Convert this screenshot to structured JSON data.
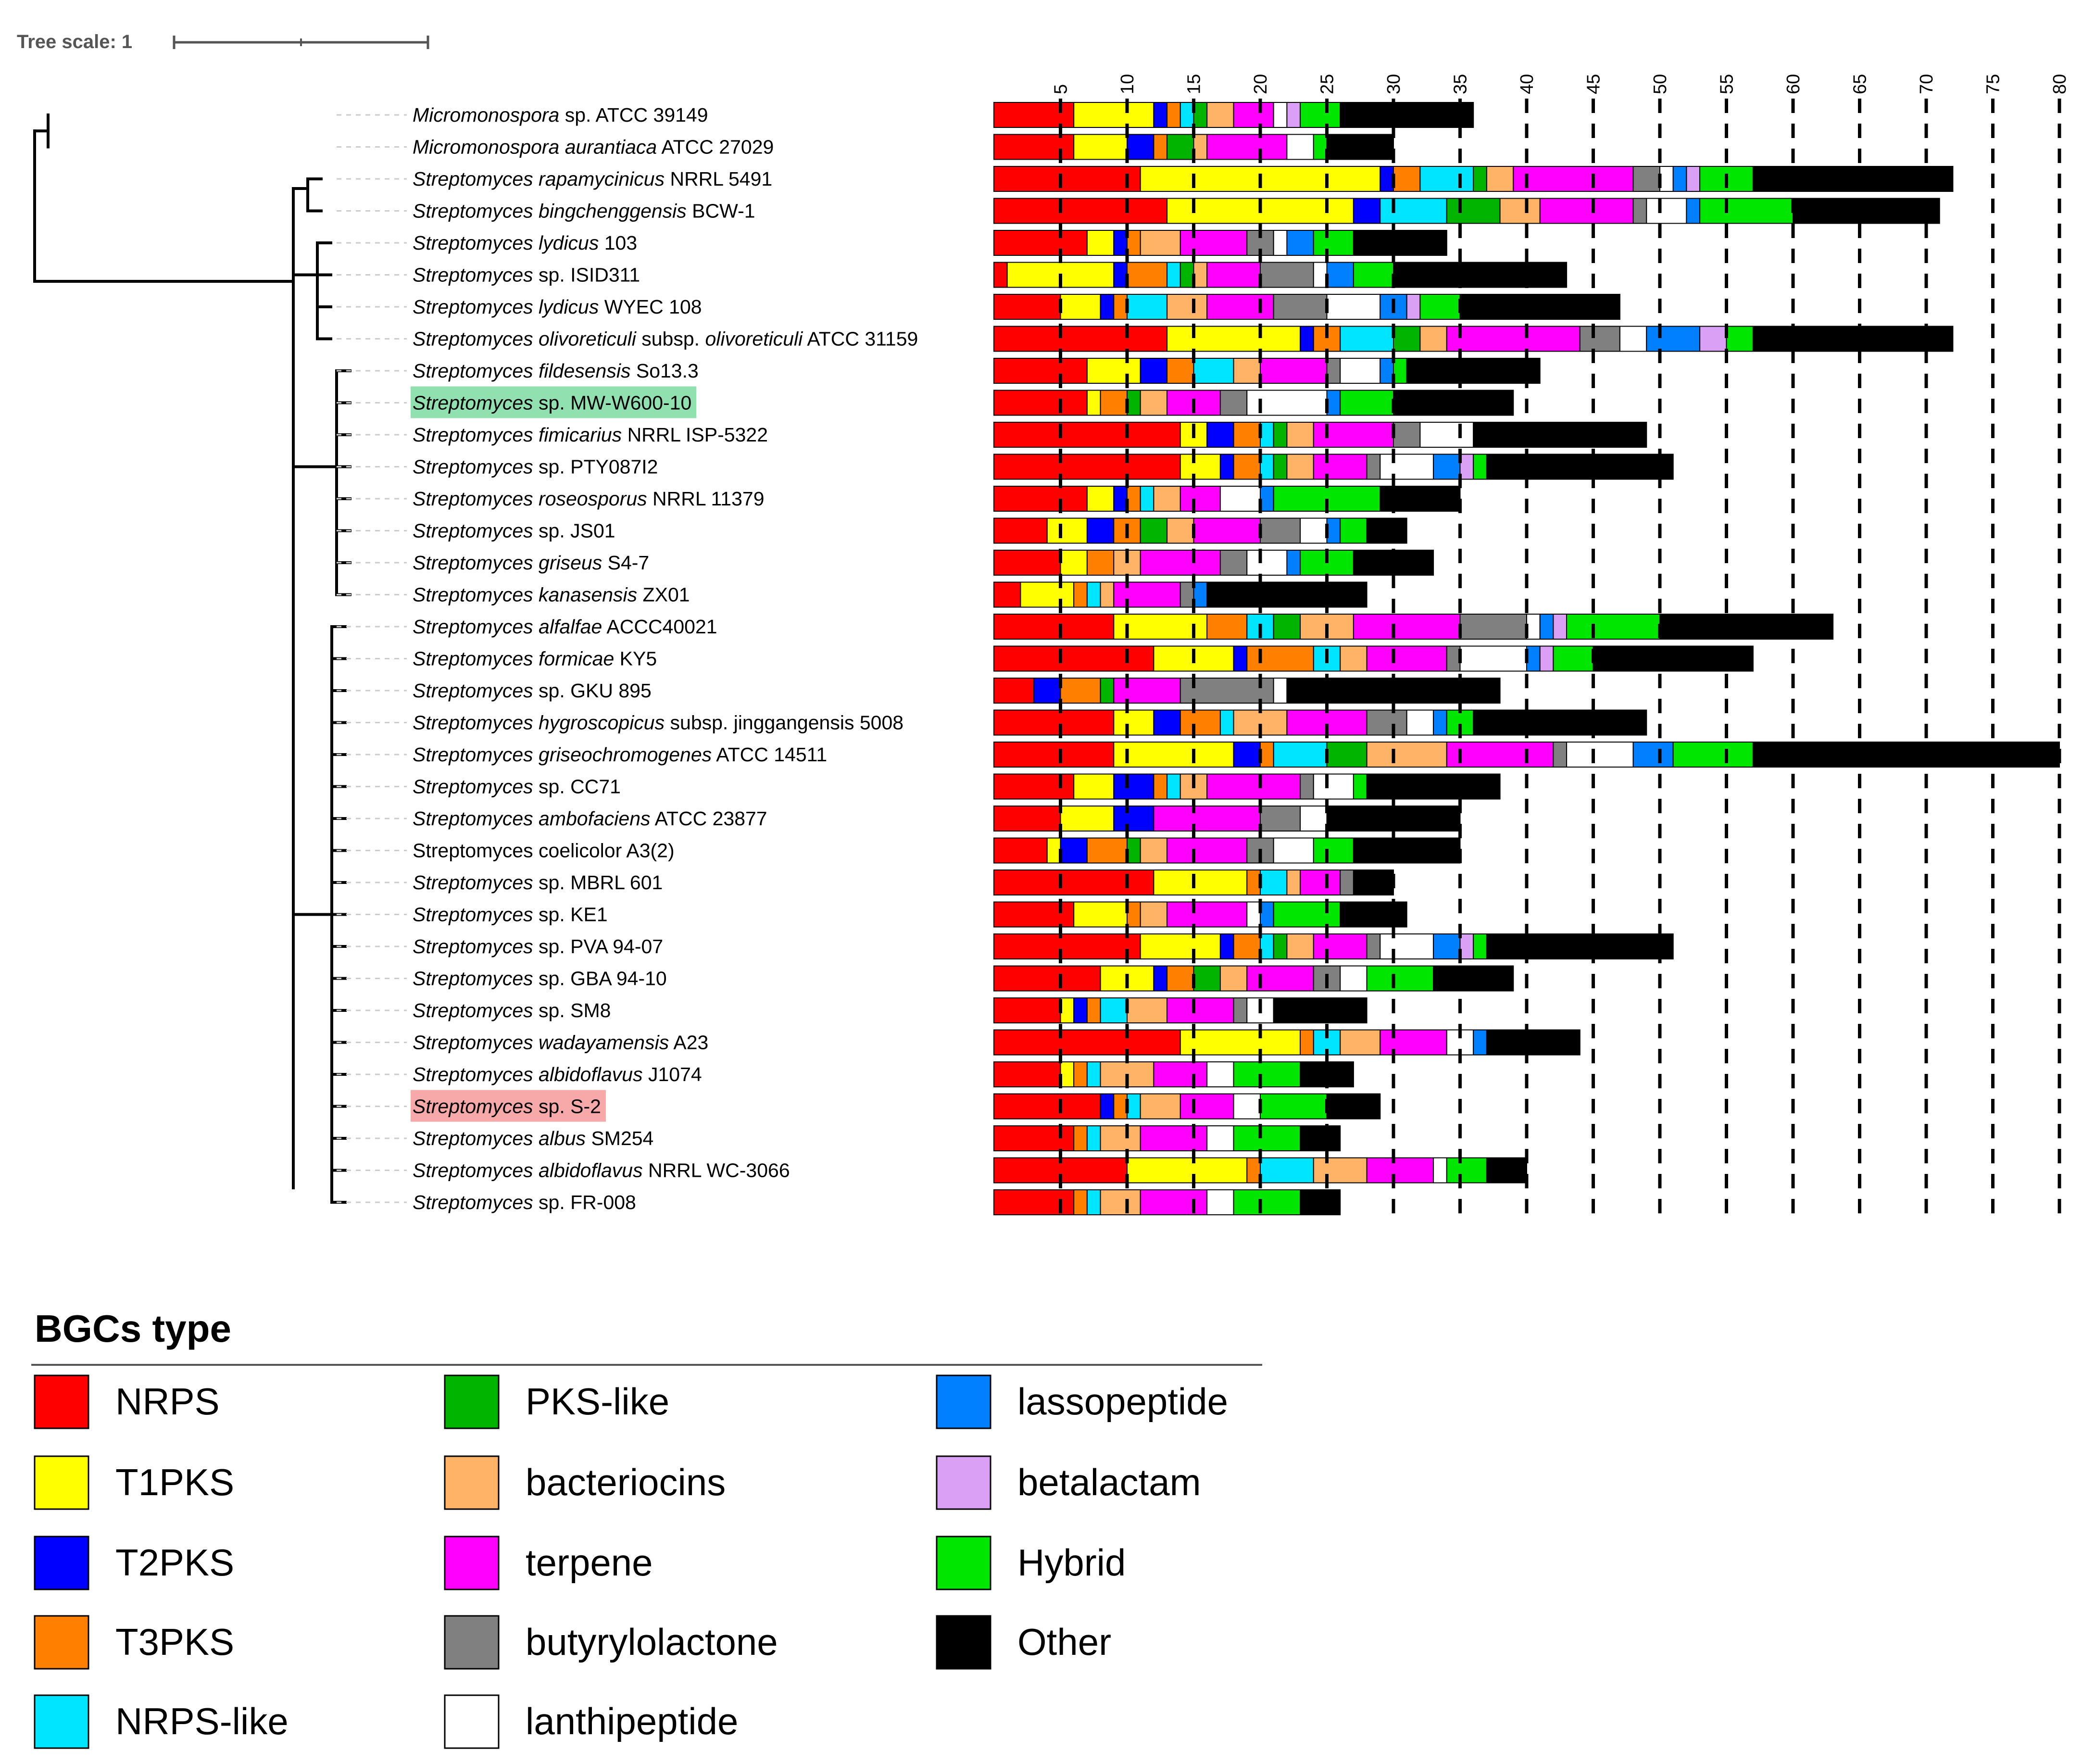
{
  "tree_scale": {
    "label": "Tree scale: 1"
  },
  "axis_ticks": [
    5,
    10,
    15,
    20,
    25,
    30,
    35,
    40,
    45,
    50,
    55,
    60,
    65,
    70,
    75,
    80
  ],
  "highlights": {
    "green": "#90E0B0",
    "red": "#F7A8A8"
  },
  "legend": {
    "title": "BGCs type",
    "items": [
      {
        "name": "NRPS",
        "color": "#FF0000"
      },
      {
        "name": "T1PKS",
        "color": "#FFFF00"
      },
      {
        "name": "T2PKS",
        "color": "#0000FF"
      },
      {
        "name": "T3PKS",
        "color": "#FF8000"
      },
      {
        "name": "NRPS-like",
        "color": "#00E5FF"
      },
      {
        "name": "PKS-like",
        "color": "#00B400"
      },
      {
        "name": "bacteriocins",
        "color": "#FFB366"
      },
      {
        "name": "terpene",
        "color": "#FF00FF"
      },
      {
        "name": "butyrylolactone",
        "color": "#808080"
      },
      {
        "name": "lanthipeptide",
        "color": "#FFFFFF"
      },
      {
        "name": "lassopeptide",
        "color": "#0080FF"
      },
      {
        "name": "betalactam",
        "color": "#D9A0F5"
      },
      {
        "name": "Hybrid",
        "color": "#00E600"
      },
      {
        "name": "Other",
        "color": "#000000"
      }
    ]
  },
  "chart_data": {
    "type": "bar",
    "orientation": "horizontal-stacked",
    "title": "",
    "xlabel": "",
    "ylabel": "",
    "xlim": [
      0,
      80
    ],
    "grid": "dashed vertical lines every 5",
    "series_order": [
      "NRPS",
      "T1PKS",
      "T2PKS",
      "T3PKS",
      "NRPS-like",
      "PKS-like",
      "bacteriocins",
      "terpene",
      "butyrylolactone",
      "lanthipeptide",
      "lassopeptide",
      "betalactam",
      "Hybrid",
      "Other"
    ],
    "rows": [
      {
        "label": [
          {
            "t": "Micromonospora",
            "i": true
          },
          {
            "t": " sp. ATCC 39149",
            "i": false
          }
        ],
        "segs": [
          6,
          6,
          1,
          1,
          1,
          1,
          2,
          3,
          0,
          1,
          0,
          1,
          3,
          10
        ]
      },
      {
        "label": [
          {
            "t": "Micromonospora aurantiaca",
            "i": true
          },
          {
            "t": " ATCC 27029",
            "i": false
          }
        ],
        "segs": [
          6,
          4,
          2,
          1,
          0,
          2,
          1,
          6,
          0,
          2,
          0,
          0,
          1,
          5
        ]
      },
      {
        "label": [
          {
            "t": "Streptomyces rapamycinicus",
            "i": true
          },
          {
            "t": " NRRL 5491",
            "i": false
          }
        ],
        "segs": [
          11,
          18,
          1,
          2,
          4,
          1,
          2,
          9,
          2,
          1,
          1,
          1,
          4,
          15
        ]
      },
      {
        "label": [
          {
            "t": "Streptomyces bingchenggensis",
            "i": true
          },
          {
            "t": " BCW-1",
            "i": false
          }
        ],
        "segs": [
          13,
          14,
          2,
          0,
          5,
          4,
          3,
          7,
          1,
          3,
          1,
          0,
          7,
          11
        ]
      },
      {
        "label": [
          {
            "t": "Streptomyces lydicus",
            "i": true
          },
          {
            "t": " 103",
            "i": false
          }
        ],
        "segs": [
          7,
          2,
          1,
          1,
          0,
          0,
          3,
          5,
          2,
          1,
          2,
          0,
          3,
          7
        ]
      },
      {
        "label": [
          {
            "t": "Streptomyces",
            "i": true
          },
          {
            "t": " sp. ISID311",
            "i": false
          }
        ],
        "segs": [
          1,
          8,
          1,
          3,
          1,
          1,
          1,
          4,
          4,
          1,
          2,
          0,
          3,
          13
        ]
      },
      {
        "label": [
          {
            "t": "Streptomyces lydicus",
            "i": true
          },
          {
            "t": " WYEC 108",
            "i": false
          }
        ],
        "segs": [
          5,
          3,
          1,
          1,
          3,
          0,
          3,
          5,
          4,
          4,
          2,
          1,
          3,
          12
        ]
      },
      {
        "label": [
          {
            "t": "Streptomyces olivoreticuli",
            "i": true
          },
          {
            "t": " subsp. ",
            "i": false
          },
          {
            "t": "olivoreticuli",
            "i": true
          },
          {
            "t": " ATCC 31159",
            "i": false
          }
        ],
        "segs": [
          13,
          10,
          1,
          2,
          4,
          2,
          2,
          10,
          3,
          2,
          4,
          2,
          2,
          15
        ]
      },
      {
        "label": [
          {
            "t": "Streptomyces fildesensis",
            "i": true
          },
          {
            "t": " So13.3",
            "i": false
          }
        ],
        "segs": [
          7,
          4,
          2,
          2,
          3,
          0,
          2,
          5,
          1,
          3,
          1,
          0,
          1,
          10
        ]
      },
      {
        "label": [
          {
            "t": "Streptomyces",
            "i": true
          },
          {
            "t": " sp. MW-W600-10",
            "i": false
          }
        ],
        "hl": "green",
        "segs": [
          7,
          1,
          0,
          2,
          0,
          1,
          2,
          4,
          2,
          6,
          1,
          0,
          4,
          9
        ]
      },
      {
        "label": [
          {
            "t": "Streptomyces fimicarius",
            "i": true
          },
          {
            "t": " NRRL ISP-5322",
            "i": false
          }
        ],
        "segs": [
          14,
          2,
          2,
          2,
          1,
          1,
          2,
          6,
          2,
          4,
          0,
          0,
          0,
          13
        ]
      },
      {
        "label": [
          {
            "t": "Streptomyces",
            "i": true
          },
          {
            "t": " sp. PTY087I2",
            "i": false
          }
        ],
        "segs": [
          14,
          3,
          1,
          2,
          1,
          1,
          2,
          4,
          1,
          4,
          2,
          1,
          1,
          14
        ]
      },
      {
        "label": [
          {
            "t": "Streptomyces roseosporus",
            "i": true
          },
          {
            "t": " NRRL 11379",
            "i": false
          }
        ],
        "segs": [
          7,
          2,
          1,
          1,
          1,
          0,
          2,
          3,
          0,
          3,
          1,
          0,
          8,
          6
        ]
      },
      {
        "label": [
          {
            "t": "Streptomyces",
            "i": true
          },
          {
            "t": " sp. JS01",
            "i": false
          }
        ],
        "segs": [
          4,
          3,
          2,
          2,
          0,
          2,
          2,
          5,
          3,
          2,
          1,
          0,
          2,
          3
        ]
      },
      {
        "label": [
          {
            "t": "Streptomyces griseus",
            "i": true
          },
          {
            "t": " S4-7",
            "i": false
          }
        ],
        "segs": [
          5,
          2,
          0,
          2,
          0,
          0,
          2,
          6,
          2,
          3,
          1,
          0,
          4,
          6
        ]
      },
      {
        "label": [
          {
            "t": "Streptomyces kanasensis",
            "i": true
          },
          {
            "t": " ZX01",
            "i": false
          }
        ],
        "segs": [
          2,
          4,
          0,
          1,
          1,
          0,
          1,
          5,
          1,
          0,
          1,
          0,
          0,
          12
        ]
      },
      {
        "label": [
          {
            "t": "Streptomyces alfalfae",
            "i": true
          },
          {
            "t": " ACCC40021",
            "i": false
          }
        ],
        "segs": [
          9,
          7,
          0,
          3,
          2,
          2,
          4,
          8,
          5,
          1,
          1,
          1,
          7,
          13
        ]
      },
      {
        "label": [
          {
            "t": "Streptomyces formicae",
            "i": true
          },
          {
            "t": " KY5",
            "i": false
          }
        ],
        "segs": [
          12,
          6,
          1,
          5,
          2,
          0,
          2,
          6,
          1,
          5,
          1,
          1,
          3,
          12
        ]
      },
      {
        "label": [
          {
            "t": "Streptomyces",
            "i": true
          },
          {
            "t": " sp. GKU 895",
            "i": false
          }
        ],
        "segs": [
          3,
          0,
          2,
          3,
          0,
          1,
          0,
          5,
          7,
          1,
          0,
          0,
          0,
          16
        ]
      },
      {
        "label": [
          {
            "t": "Streptomyces hygroscopicus",
            "i": true
          },
          {
            "t": " subsp. jinggangensis 5008",
            "i": false
          }
        ],
        "segs": [
          9,
          3,
          2,
          3,
          1,
          0,
          4,
          6,
          3,
          2,
          1,
          0,
          2,
          13
        ]
      },
      {
        "label": [
          {
            "t": "Streptomyces griseochromogenes",
            "i": true
          },
          {
            "t": " ATCC 14511",
            "i": false
          }
        ],
        "segs": [
          9,
          9,
          2,
          1,
          4,
          3,
          6,
          8,
          1,
          5,
          3,
          0,
          6,
          23
        ]
      },
      {
        "label": [
          {
            "t": "Streptomyces",
            "i": true
          },
          {
            "t": " sp. CC71",
            "i": false
          }
        ],
        "segs": [
          6,
          3,
          3,
          1,
          1,
          0,
          2,
          7,
          1,
          3,
          0,
          0,
          1,
          10
        ]
      },
      {
        "label": [
          {
            "t": "Streptomyces ambofaciens",
            "i": true
          },
          {
            "t": " ATCC 23877",
            "i": false
          }
        ],
        "segs": [
          5,
          4,
          3,
          0,
          0,
          0,
          0,
          8,
          3,
          2,
          0,
          0,
          0,
          10
        ]
      },
      {
        "label": [
          {
            "t": "Streptomyces coelicolor A3(2)",
            "i": false
          }
        ],
        "segs": [
          4,
          1,
          2,
          3,
          0,
          1,
          2,
          6,
          2,
          3,
          0,
          0,
          3,
          8
        ]
      },
      {
        "label": [
          {
            "t": "Streptomyces",
            "i": true
          },
          {
            "t": " sp. MBRL 601",
            "i": false
          }
        ],
        "segs": [
          12,
          7,
          0,
          1,
          2,
          0,
          1,
          3,
          1,
          0,
          0,
          0,
          0,
          3
        ]
      },
      {
        "label": [
          {
            "t": "Streptomyces",
            "i": true
          },
          {
            "t": " sp. KE1",
            "i": false
          }
        ],
        "segs": [
          6,
          4,
          0,
          1,
          0,
          0,
          2,
          6,
          0,
          1,
          1,
          0,
          5,
          5
        ]
      },
      {
        "label": [
          {
            "t": "Streptomyces",
            "i": true
          },
          {
            "t": " sp. PVA 94-07",
            "i": false
          }
        ],
        "segs": [
          11,
          6,
          1,
          2,
          1,
          1,
          2,
          4,
          1,
          4,
          2,
          1,
          1,
          14
        ]
      },
      {
        "label": [
          {
            "t": "Streptomyces",
            "i": true
          },
          {
            "t": " sp. GBA 94-10",
            "i": false
          }
        ],
        "segs": [
          8,
          4,
          1,
          2,
          0,
          2,
          2,
          5,
          2,
          2,
          0,
          0,
          5,
          6
        ]
      },
      {
        "label": [
          {
            "t": "Streptomyces",
            "i": true
          },
          {
            "t": " sp. SM8",
            "i": false
          }
        ],
        "segs": [
          5,
          1,
          1,
          1,
          2,
          0,
          3,
          5,
          1,
          2,
          0,
          0,
          0,
          7
        ]
      },
      {
        "label": [
          {
            "t": "Streptomyces wadayamensis",
            "i": true
          },
          {
            "t": " A23",
            "i": false
          }
        ],
        "segs": [
          14,
          9,
          0,
          1,
          2,
          0,
          3,
          5,
          0,
          2,
          1,
          0,
          0,
          7
        ]
      },
      {
        "label": [
          {
            "t": "Streptomyces albidoflavus",
            "i": true
          },
          {
            "t": " J1074",
            "i": false
          }
        ],
        "segs": [
          5,
          1,
          0,
          1,
          1,
          0,
          4,
          4,
          0,
          2,
          0,
          0,
          5,
          4
        ]
      },
      {
        "label": [
          {
            "t": "Streptomyces",
            "i": true
          },
          {
            "t": " sp. S-2",
            "i": false
          }
        ],
        "hl": "red",
        "segs": [
          8,
          0,
          1,
          1,
          1,
          0,
          3,
          4,
          0,
          2,
          0,
          0,
          5,
          4
        ]
      },
      {
        "label": [
          {
            "t": "Streptomyces albus",
            "i": true
          },
          {
            "t": " SM254",
            "i": false
          }
        ],
        "segs": [
          6,
          0,
          0,
          1,
          1,
          0,
          3,
          5,
          0,
          2,
          0,
          0,
          5,
          3
        ]
      },
      {
        "label": [
          {
            "t": "Streptomyces albidoflavus",
            "i": true
          },
          {
            "t": " NRRL WC-3066",
            "i": false
          }
        ],
        "segs": [
          10,
          9,
          0,
          1,
          4,
          0,
          4,
          5,
          0,
          1,
          0,
          0,
          3,
          3
        ]
      },
      {
        "label": [
          {
            "t": "Streptomyces",
            "i": true
          },
          {
            "t": " sp. FR-008",
            "i": false
          }
        ],
        "segs": [
          6,
          0,
          0,
          1,
          1,
          0,
          3,
          5,
          0,
          2,
          0,
          0,
          5,
          3
        ]
      }
    ]
  }
}
